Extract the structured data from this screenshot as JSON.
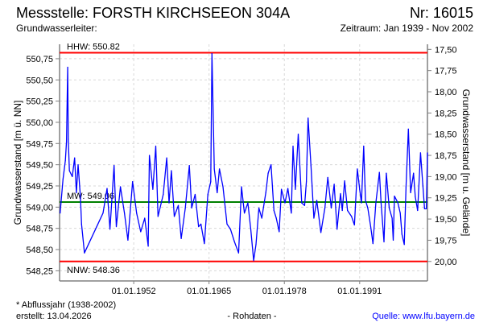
{
  "header": {
    "title": "Messstelle: FORSTH KIRCHSEEON 304A",
    "number": "Nr: 16015",
    "aquifer": "Grundwasserleiter:",
    "period": "Zeitraum: Jan 1939 - Nov 2002"
  },
  "footer": {
    "note": "* Abflussjahr (1938-2002)",
    "created": "erstellt:  13.04.2026",
    "datatype": "- Rohdaten -",
    "source": "Quelle: www.lfu.bayern.de"
  },
  "colors": {
    "series": "#0000ff",
    "extreme": "#ff0000",
    "mean": "#008000",
    "grid": "#d8d8d8",
    "source": "#0000ff"
  },
  "chart_data": {
    "type": "line",
    "ylabel": "Grundwasserstand [m ü. NN]",
    "y2label": "Grundwasserstand [m u. Gelände]",
    "xlim": [
      1939.2,
      2002.7
    ],
    "ylim": [
      548.13,
      550.92
    ],
    "ground_level": 568.36,
    "grid": true,
    "xticks": [
      {
        "year": 1952,
        "label": "01.01.1952"
      },
      {
        "year": 1965,
        "label": "01.01.1965"
      },
      {
        "year": 1978,
        "label": "01.01.1978"
      },
      {
        "year": 1991,
        "label": "01.01.1991"
      }
    ],
    "yticks": [
      {
        "v": 550.75,
        "label": "550,75"
      },
      {
        "v": 550.5,
        "label": "550,50"
      },
      {
        "v": 550.25,
        "label": "550,25"
      },
      {
        "v": 550.0,
        "label": "550,00"
      },
      {
        "v": 549.75,
        "label": "549,75"
      },
      {
        "v": 549.5,
        "label": "549,50"
      },
      {
        "v": 549.25,
        "label": "549,25"
      },
      {
        "v": 549.0,
        "label": "549,00"
      },
      {
        "v": 548.75,
        "label": "548,75"
      },
      {
        "v": 548.5,
        "label": "548,50"
      },
      {
        "v": 548.25,
        "label": "548,25"
      }
    ],
    "y2ticks": [
      {
        "v": 17.5,
        "label": "17,50"
      },
      {
        "v": 17.75,
        "label": "17,75"
      },
      {
        "v": 18.0,
        "label": "18,00"
      },
      {
        "v": 18.25,
        "label": "18,25"
      },
      {
        "v": 18.5,
        "label": "18,50"
      },
      {
        "v": 18.75,
        "label": "18,75"
      },
      {
        "v": 19.0,
        "label": "19,00"
      },
      {
        "v": 19.25,
        "label": "19,25"
      },
      {
        "v": 19.5,
        "label": "19,50"
      },
      {
        "v": 19.75,
        "label": "19,75"
      },
      {
        "v": 20.0,
        "label": "20,00"
      }
    ],
    "reference_lines": [
      {
        "name": "HHW",
        "value": 550.82,
        "label": "HHW: 550.82",
        "color": "#ff0000"
      },
      {
        "name": "MW",
        "value": 549.06,
        "label": "MW: 549.06",
        "color": "#008000"
      },
      {
        "name": "NNW",
        "value": 548.36,
        "label": "NNW: 548.36",
        "color": "#ff0000"
      }
    ],
    "series": [
      {
        "name": "Grundwasserstand",
        "points": [
          [
            1939.3,
            548.93
          ],
          [
            1939.8,
            549.33
          ],
          [
            1940.2,
            549.55
          ],
          [
            1940.4,
            549.77
          ],
          [
            1940.6,
            550.65
          ],
          [
            1940.7,
            549.8
          ],
          [
            1940.9,
            549.43
          ],
          [
            1941.4,
            549.36
          ],
          [
            1941.8,
            549.58
          ],
          [
            1942.1,
            549.17
          ],
          [
            1942.4,
            549.5
          ],
          [
            1942.8,
            549.12
          ],
          [
            1943.0,
            548.8
          ],
          [
            1943.5,
            548.46
          ],
          [
            1946.7,
            548.93
          ],
          [
            1947.4,
            549.22
          ],
          [
            1947.9,
            548.74
          ],
          [
            1948.6,
            549.49
          ],
          [
            1949.0,
            548.77
          ],
          [
            1949.7,
            549.24
          ],
          [
            1950.4,
            548.93
          ],
          [
            1951.0,
            548.61
          ],
          [
            1951.8,
            549.3
          ],
          [
            1952.5,
            548.93
          ],
          [
            1953.2,
            548.71
          ],
          [
            1953.9,
            548.87
          ],
          [
            1954.5,
            548.54
          ],
          [
            1954.7,
            549.61
          ],
          [
            1955.3,
            549.21
          ],
          [
            1955.8,
            549.72
          ],
          [
            1956.2,
            548.89
          ],
          [
            1957.1,
            549.15
          ],
          [
            1957.7,
            549.58
          ],
          [
            1958.1,
            549.05
          ],
          [
            1958.5,
            549.43
          ],
          [
            1959.0,
            548.89
          ],
          [
            1959.7,
            549.02
          ],
          [
            1960.2,
            548.63
          ],
          [
            1960.9,
            548.99
          ],
          [
            1961.6,
            549.49
          ],
          [
            1962.0,
            548.99
          ],
          [
            1962.6,
            549.15
          ],
          [
            1963.2,
            548.77
          ],
          [
            1963.6,
            548.8
          ],
          [
            1964.2,
            548.57
          ],
          [
            1964.8,
            549.15
          ],
          [
            1965.3,
            549.3
          ],
          [
            1965.5,
            550.81
          ],
          [
            1965.9,
            549.45
          ],
          [
            1966.4,
            549.17
          ],
          [
            1966.8,
            549.45
          ],
          [
            1967.4,
            549.24
          ],
          [
            1968.1,
            548.8
          ],
          [
            1968.7,
            548.74
          ],
          [
            1969.4,
            548.59
          ],
          [
            1970.1,
            548.46
          ],
          [
            1970.6,
            549.24
          ],
          [
            1971.1,
            548.93
          ],
          [
            1971.7,
            549.05
          ],
          [
            1972.2,
            548.74
          ],
          [
            1972.7,
            548.37
          ],
          [
            1973.1,
            548.56
          ],
          [
            1973.6,
            548.99
          ],
          [
            1974.1,
            548.87
          ],
          [
            1974.8,
            549.17
          ],
          [
            1975.2,
            549.4
          ],
          [
            1975.7,
            549.5
          ],
          [
            1976.2,
            548.96
          ],
          [
            1976.6,
            548.87
          ],
          [
            1977.1,
            548.71
          ],
          [
            1977.5,
            549.21
          ],
          [
            1978.1,
            549.05
          ],
          [
            1978.6,
            549.22
          ],
          [
            1979.2,
            548.93
          ],
          [
            1979.5,
            549.72
          ],
          [
            1979.9,
            549.21
          ],
          [
            1980.4,
            549.86
          ],
          [
            1981.0,
            549.05
          ],
          [
            1981.5,
            549.02
          ],
          [
            1981.8,
            549.3
          ],
          [
            1982.1,
            550.05
          ],
          [
            1982.6,
            549.49
          ],
          [
            1983.1,
            548.87
          ],
          [
            1983.6,
            549.08
          ],
          [
            1984.3,
            548.7
          ],
          [
            1985.0,
            548.99
          ],
          [
            1985.5,
            549.35
          ],
          [
            1986.1,
            548.99
          ],
          [
            1986.6,
            549.27
          ],
          [
            1987.1,
            548.74
          ],
          [
            1987.7,
            549.16
          ],
          [
            1988.0,
            548.96
          ],
          [
            1988.4,
            549.31
          ],
          [
            1988.9,
            548.96
          ],
          [
            1989.6,
            548.89
          ],
          [
            1990.1,
            548.79
          ],
          [
            1990.6,
            549.45
          ],
          [
            1991.0,
            549.21
          ],
          [
            1991.3,
            549.05
          ],
          [
            1991.7,
            549.72
          ],
          [
            1992.0,
            549.08
          ],
          [
            1992.4,
            548.99
          ],
          [
            1992.9,
            548.77
          ],
          [
            1993.3,
            548.57
          ],
          [
            1993.8,
            549.05
          ],
          [
            1994.4,
            549.41
          ],
          [
            1994.7,
            549.05
          ],
          [
            1995.2,
            548.59
          ],
          [
            1995.6,
            549.4
          ],
          [
            1996.1,
            548.99
          ],
          [
            1996.6,
            548.87
          ],
          [
            1996.8,
            548.61
          ],
          [
            1997.0,
            549.13
          ],
          [
            1997.6,
            549.05
          ],
          [
            1998.0,
            548.93
          ],
          [
            1998.3,
            548.68
          ],
          [
            1998.7,
            548.56
          ],
          [
            1999.0,
            549.24
          ],
          [
            1999.4,
            549.92
          ],
          [
            1999.8,
            549.17
          ],
          [
            2000.3,
            549.4
          ],
          [
            2000.6,
            549.12
          ],
          [
            2001.0,
            548.96
          ],
          [
            2001.5,
            549.64
          ],
          [
            2001.9,
            549.27
          ],
          [
            2002.2,
            548.98
          ],
          [
            2002.5,
            548.98
          ],
          [
            2002.7,
            549.64
          ]
        ]
      }
    ]
  }
}
